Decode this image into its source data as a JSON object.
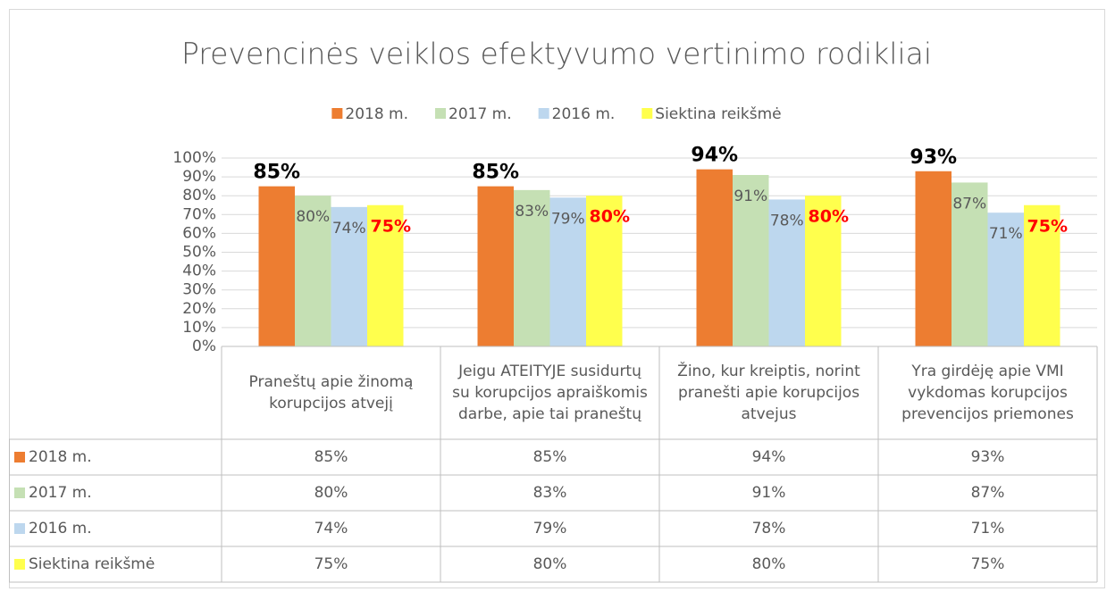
{
  "chart_data": {
    "type": "bar",
    "title": "Prevencinės veiklos efektyvumo vertinimo rodikliai",
    "categories": [
      "Praneštų apie žinomą korupcijos atvejį",
      "Jeigu ATEITYJE susidurtų su korupcijos apraiškomis darbe, apie tai praneštų",
      "Žino, kur kreiptis, norint pranešti apie korupcijos atvejus",
      "Yra girdėję apie VMI vykdomas korupcijos prevencijos priemones"
    ],
    "series": [
      {
        "name": "2018 m.",
        "color": "#ed7d31",
        "label_color": "#000000",
        "values": [
          85,
          85,
          94,
          93
        ],
        "value_labels": [
          "85%",
          "85%",
          "94%",
          "93%"
        ]
      },
      {
        "name": "2017 m.",
        "color": "#c5e0b4",
        "label_color": "#595959",
        "values": [
          80,
          83,
          91,
          87
        ],
        "value_labels": [
          "80%",
          "83%",
          "91%",
          "87%"
        ]
      },
      {
        "name": "2016 m.",
        "color": "#bdd7ee",
        "label_color": "#595959",
        "values": [
          74,
          79,
          78,
          71
        ],
        "value_labels": [
          "74%",
          "79%",
          "78%",
          "71%"
        ]
      },
      {
        "name": "Siektina reikšmė",
        "color": "#ffff4d",
        "label_color": "#ff0000",
        "values": [
          75,
          80,
          80,
          75
        ],
        "value_labels": [
          "75%",
          "80%",
          "80%",
          "75%"
        ]
      }
    ],
    "ylim": [
      0,
      100
    ],
    "yticks": [
      {
        "value": 0,
        "label": "0%"
      },
      {
        "value": 10,
        "label": "10%"
      },
      {
        "value": 20,
        "label": "20%"
      },
      {
        "value": 30,
        "label": "30%"
      },
      {
        "value": 40,
        "label": "40%"
      },
      {
        "value": 50,
        "label": "50%"
      },
      {
        "value": 60,
        "label": "60%"
      },
      {
        "value": 70,
        "label": "70%"
      },
      {
        "value": 80,
        "label": "80%"
      },
      {
        "value": 90,
        "label": "90%"
      },
      {
        "value": 100,
        "label": "100%"
      }
    ],
    "grid": true,
    "legend": "top",
    "data_table": true
  }
}
